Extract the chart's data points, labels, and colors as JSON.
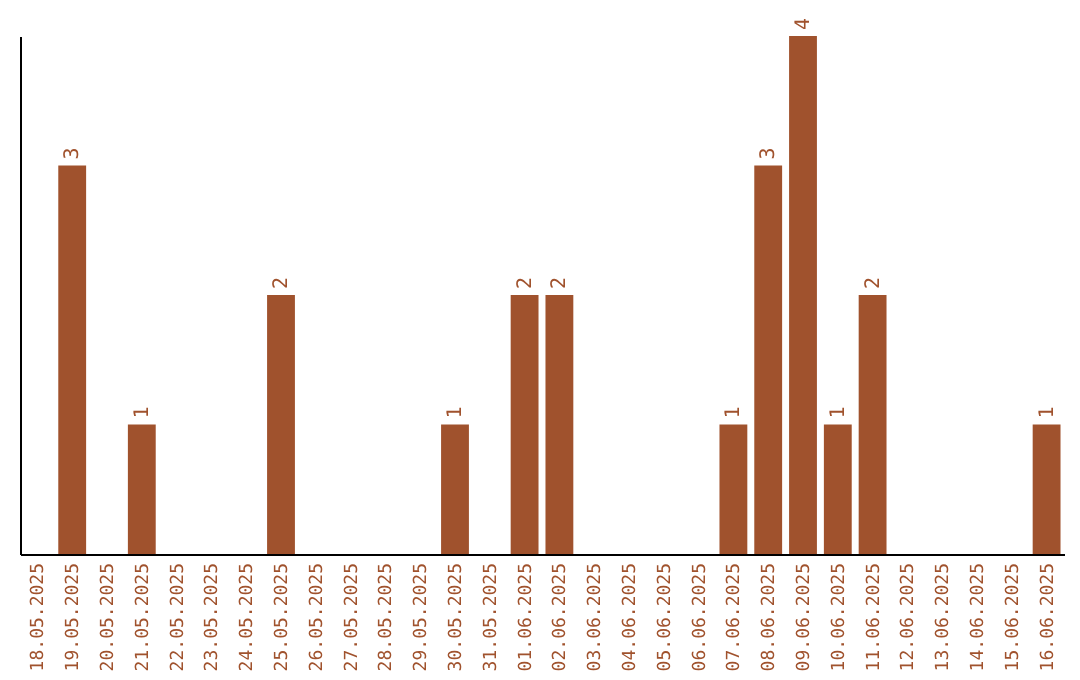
{
  "chart_data": {
    "type": "bar",
    "categories": [
      "18.05.2025",
      "19.05.2025",
      "20.05.2025",
      "21.05.2025",
      "22.05.2025",
      "23.05.2025",
      "24.05.2025",
      "25.05.2025",
      "26.05.2025",
      "27.05.2025",
      "28.05.2025",
      "29.05.2025",
      "30.05.2025",
      "31.05.2025",
      "01.06.2025",
      "02.06.2025",
      "03.06.2025",
      "04.06.2025",
      "05.06.2025",
      "06.06.2025",
      "07.06.2025",
      "08.06.2025",
      "09.06.2025",
      "10.06.2025",
      "11.06.2025",
      "12.06.2025",
      "13.06.2025",
      "14.06.2025",
      "15.06.2025",
      "16.06.2025"
    ],
    "values": [
      0,
      3,
      0,
      1,
      0,
      0,
      0,
      2,
      0,
      0,
      0,
      0,
      1,
      0,
      2,
      2,
      0,
      0,
      0,
      0,
      1,
      3,
      4,
      1,
      2,
      0,
      0,
      0,
      0,
      1
    ],
    "value_labels": [
      null,
      "3",
      null,
      "1",
      null,
      null,
      null,
      "2",
      null,
      null,
      null,
      null,
      "1",
      null,
      "2",
      "2",
      null,
      null,
      null,
      null,
      "1",
      "3",
      "4",
      "1",
      "2",
      null,
      null,
      null,
      null,
      "1"
    ],
    "color": "#a0522d",
    "tick_labels": "x",
    "grid": false
  }
}
